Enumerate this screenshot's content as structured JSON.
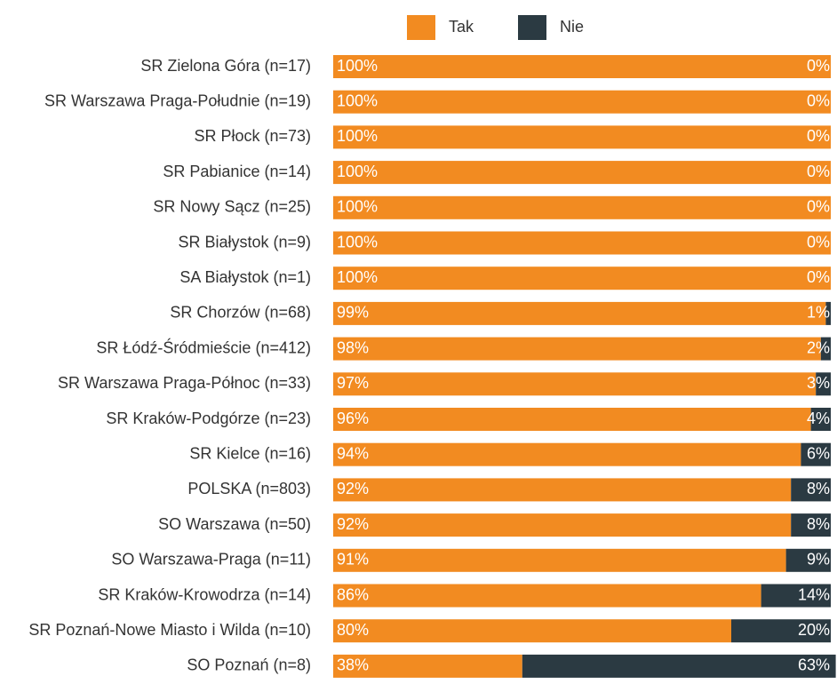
{
  "chart_data": {
    "type": "stacked-bar-horizontal",
    "categories": [
      "SR Zielona Góra (n=17)",
      "SR Warszawa Praga-Południe (n=19)",
      "SR Płock (n=73)",
      "SR Pabianice (n=14)",
      "SR Nowy Sącz (n=25)",
      "SR Białystok (n=9)",
      "SA Białystok (n=1)",
      "SR Chorzów (n=68)",
      "SR Łódź-Śródmieście (n=412)",
      "SR Warszawa Praga-Północ (n=33)",
      "SR Kraków-Podgórze (n=23)",
      "SR Kielce (n=16)",
      "POLSKA (n=803)",
      "SO Warszawa (n=50)",
      "SO Warszawa-Praga (n=11)",
      "SR Kraków-Krowodrza (n=14)",
      "SR Poznań-Nowe Miasto i Wilda (n=10)",
      "SO Poznań (n=8)"
    ],
    "series": [
      {
        "name": "Tak",
        "color": "#f28b21",
        "values": [
          100,
          100,
          100,
          100,
          100,
          100,
          100,
          99,
          98,
          97,
          96,
          94,
          92,
          92,
          91,
          86,
          80,
          38
        ],
        "value_labels": [
          "100%",
          "100%",
          "100%",
          "100%",
          "100%",
          "100%",
          "100%",
          "99%",
          "98%",
          "97%",
          "96%",
          "94%",
          "92%",
          "92%",
          "91%",
          "86%",
          "80%",
          "38%"
        ]
      },
      {
        "name": "Nie",
        "color": "#2b3a42",
        "values": [
          0,
          0,
          0,
          0,
          0,
          0,
          0,
          1,
          2,
          3,
          4,
          6,
          8,
          8,
          9,
          14,
          20,
          63
        ],
        "value_labels": [
          "0%",
          "0%",
          "0%",
          "0%",
          "0%",
          "0%",
          "0%",
          "1%",
          "2%",
          "3%",
          "4%",
          "6%",
          "8%",
          "8%",
          "9%",
          "14%",
          "20%",
          "63%"
        ]
      }
    ],
    "xlim": [
      0,
      100
    ],
    "legend": "top"
  }
}
